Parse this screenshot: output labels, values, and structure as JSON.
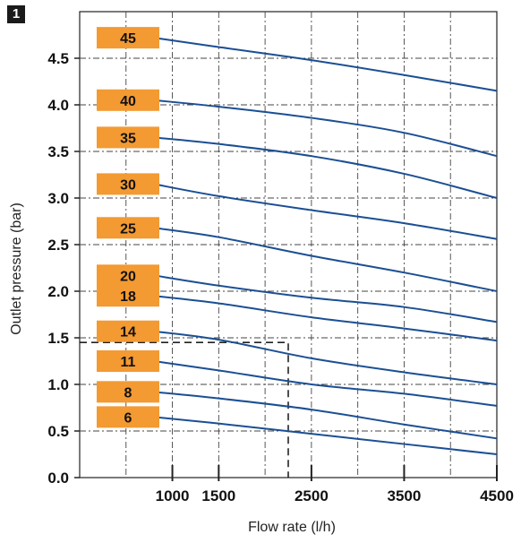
{
  "figure_number": "1",
  "chart_data": {
    "type": "line",
    "xlabel": "Flow rate (l/h)",
    "ylabel": "Outlet pressure (bar)",
    "xlim": [
      0,
      4500
    ],
    "ylim": [
      0,
      5.0
    ],
    "x_ticks": [
      1000,
      1500,
      2500,
      3500,
      4500
    ],
    "x_tick_labels": [
      "1000",
      "1500",
      "2500",
      "3500",
      "4500"
    ],
    "y_ticks": [
      0.0,
      0.5,
      1.0,
      1.5,
      2.0,
      2.5,
      3.0,
      3.5,
      4.0,
      4.5
    ],
    "y_tick_labels": [
      "0.0",
      "0.5",
      "1.0",
      "1.5",
      "2.0",
      "2.5",
      "3.0",
      "3.5",
      "4.0",
      "4.5"
    ],
    "grid": true,
    "line_color": "#1b4f93",
    "label_color": "#f39a32",
    "x": [
      800,
      1500,
      2500,
      3500,
      4500
    ],
    "series": [
      {
        "name": "45",
        "values": [
          4.72,
          4.62,
          4.48,
          4.32,
          4.15
        ]
      },
      {
        "name": "40",
        "values": [
          4.05,
          3.98,
          3.86,
          3.7,
          3.45
        ]
      },
      {
        "name": "35",
        "values": [
          3.65,
          3.58,
          3.45,
          3.26,
          3.0
        ]
      },
      {
        "name": "30",
        "values": [
          3.15,
          3.02,
          2.87,
          2.73,
          2.56
        ]
      },
      {
        "name": "25",
        "values": [
          2.68,
          2.58,
          2.38,
          2.2,
          2.0
        ]
      },
      {
        "name": "20",
        "values": [
          2.17,
          2.06,
          1.93,
          1.83,
          1.67
        ]
      },
      {
        "name": "18",
        "values": [
          1.95,
          1.87,
          1.72,
          1.6,
          1.47
        ]
      },
      {
        "name": "14",
        "values": [
          1.57,
          1.48,
          1.28,
          1.13,
          1.0
        ]
      },
      {
        "name": "11",
        "values": [
          1.25,
          1.15,
          1.0,
          0.9,
          0.77
        ]
      },
      {
        "name": "8",
        "values": [
          0.92,
          0.85,
          0.73,
          0.57,
          0.42
        ]
      },
      {
        "name": "6",
        "values": [
          0.65,
          0.58,
          0.47,
          0.36,
          0.25
        ]
      }
    ],
    "reference_line": {
      "x": 2250,
      "y": 1.45
    }
  }
}
